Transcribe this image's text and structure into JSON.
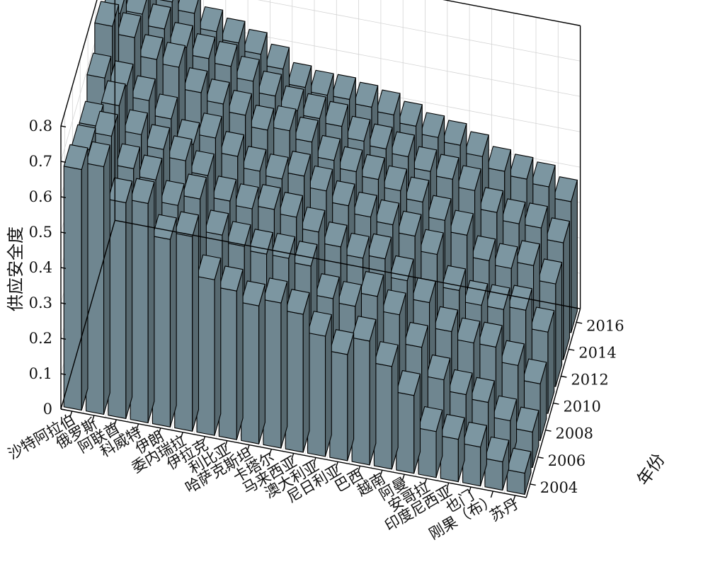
{
  "chart_data": {
    "type": "bar3d",
    "ylabel": "供应安全度",
    "year_axis_label": "年份",
    "countries": [
      "沙特阿拉伯",
      "俄罗斯",
      "阿联酋",
      "科威特",
      "伊朗",
      "委内瑞拉",
      "伊拉克",
      "利比亚",
      "哈萨克斯坦",
      "卡塔尔",
      "马来西亚",
      "澳大利亚",
      "尼日利亚",
      "巴西",
      "越南",
      "阿曼",
      "安哥拉",
      "印度尼西亚",
      "也门",
      "刚果（布）",
      "苏丹"
    ],
    "years": [
      "2004",
      "2006",
      "2008",
      "2010",
      "2012",
      "2014",
      "2016"
    ],
    "z_ticks": [
      "0",
      "0.1",
      "0.2",
      "0.3",
      "0.4",
      "0.5",
      "0.6",
      "0.7",
      "0.8"
    ],
    "zlim": [
      0,
      0.8
    ],
    "bar_color": "#6f8690",
    "values": [
      [
        0.68,
        0.66,
        0.65,
        0.71,
        0.78,
        0.74,
        0.83
      ],
      [
        0.7,
        0.71,
        0.72,
        0.7,
        0.76,
        0.75,
        0.73
      ],
      [
        0.61,
        0.63,
        0.65,
        0.67,
        0.71,
        0.72,
        0.72
      ],
      [
        0.62,
        0.61,
        0.62,
        0.63,
        0.7,
        0.68,
        0.7
      ],
      [
        0.53,
        0.55,
        0.6,
        0.57,
        0.64,
        0.66,
        0.66
      ],
      [
        0.55,
        0.58,
        0.57,
        0.6,
        0.62,
        0.65,
        0.64
      ],
      [
        0.44,
        0.49,
        0.51,
        0.56,
        0.6,
        0.62,
        0.62
      ],
      [
        0.42,
        0.47,
        0.5,
        0.53,
        0.57,
        0.59,
        0.59
      ],
      [
        0.39,
        0.46,
        0.51,
        0.52,
        0.58,
        0.56,
        0.55
      ],
      [
        0.41,
        0.46,
        0.5,
        0.54,
        0.56,
        0.55,
        0.54
      ],
      [
        0.39,
        0.45,
        0.47,
        0.51,
        0.52,
        0.54,
        0.54
      ],
      [
        0.34,
        0.37,
        0.44,
        0.48,
        0.5,
        0.51,
        0.53
      ],
      [
        0.3,
        0.36,
        0.42,
        0.46,
        0.49,
        0.5,
        0.52
      ],
      [
        0.35,
        0.4,
        0.43,
        0.45,
        0.47,
        0.49,
        0.5
      ],
      [
        0.29,
        0.36,
        0.38,
        0.43,
        0.45,
        0.46,
        0.48
      ],
      [
        0.22,
        0.28,
        0.33,
        0.39,
        0.41,
        0.45,
        0.47
      ],
      [
        0.13,
        0.2,
        0.26,
        0.3,
        0.38,
        0.43,
        0.45
      ],
      [
        0.12,
        0.17,
        0.24,
        0.27,
        0.32,
        0.38,
        0.42
      ],
      [
        0.11,
        0.16,
        0.24,
        0.27,
        0.31,
        0.36,
        0.41
      ],
      [
        0.08,
        0.12,
        0.2,
        0.28,
        0.33,
        0.36,
        0.4
      ],
      [
        0.06,
        0.1,
        0.16,
        0.23,
        0.29,
        0.33,
        0.37
      ]
    ]
  }
}
